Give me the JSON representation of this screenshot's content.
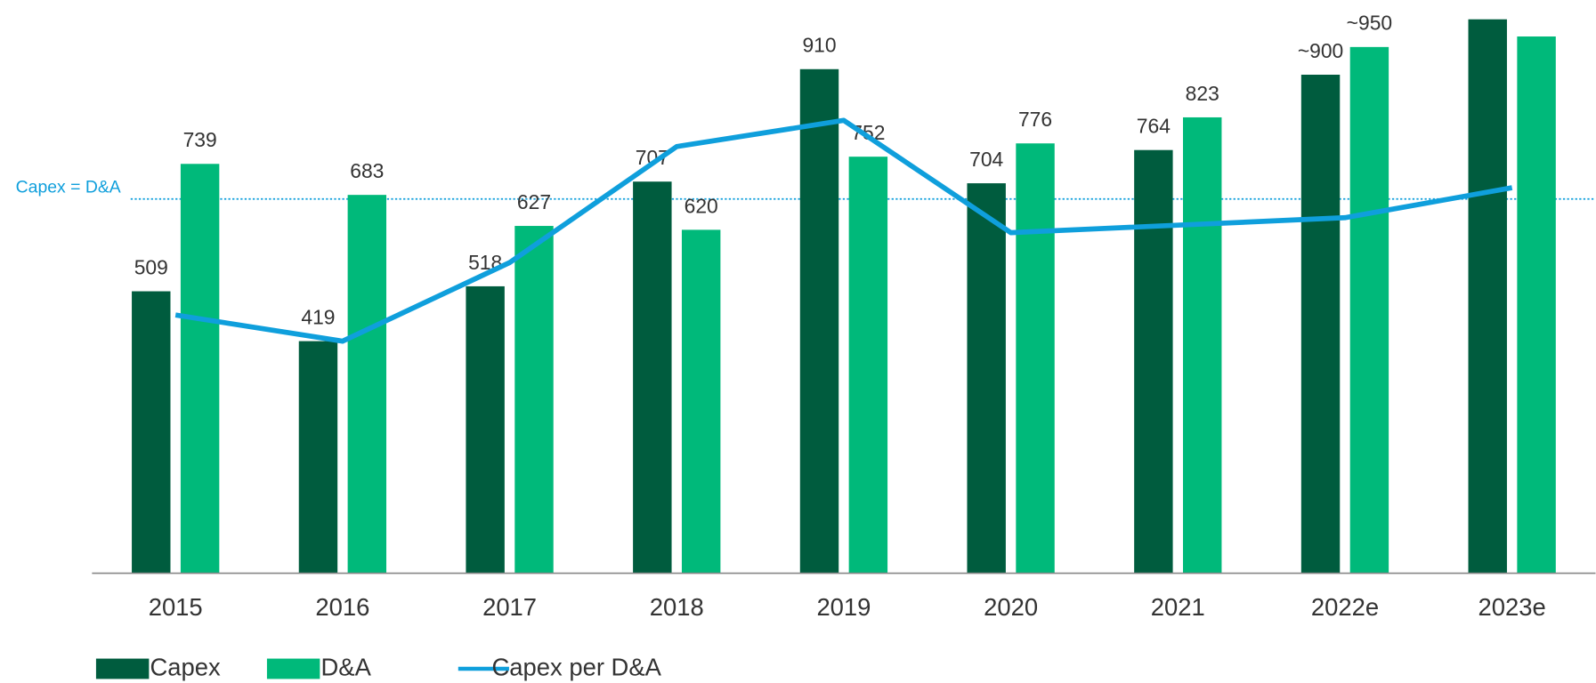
{
  "chart_data": {
    "type": "bar",
    "categories": [
      "2015",
      "2016",
      "2017",
      "2018",
      "2019",
      "2020",
      "2021",
      "2022e",
      "2023e"
    ],
    "series": [
      {
        "name": "Capex",
        "color": "#005c3e",
        "values": [
          509,
          419,
          518,
          707,
          910,
          704,
          764,
          900,
          1000
        ],
        "value_labels": [
          "509",
          "419",
          "518",
          "707",
          "910",
          "704",
          "764",
          "~900",
          null
        ]
      },
      {
        "name": "D&A",
        "color": "#00b97a",
        "values": [
          739,
          683,
          627,
          620,
          752,
          776,
          823,
          950,
          969
        ],
        "value_labels": [
          "739",
          "683",
          "627",
          "620",
          "752",
          "776",
          "823",
          "~950",
          null
        ]
      },
      {
        "name": "Capex per D&A",
        "type": "line",
        "axis": "y2",
        "color": "#0f9fdc",
        "values": [
          0.69,
          0.62,
          0.83,
          1.14,
          1.21,
          0.91,
          0.93,
          0.95,
          1.03
        ]
      }
    ],
    "ylim": [
      0,
      1000
    ],
    "y2lim": [
      0,
      1.48
    ],
    "reference_line": {
      "value": 1,
      "axis": "y2",
      "label": "Capex = D&A",
      "color": "#0f9fdc"
    }
  }
}
